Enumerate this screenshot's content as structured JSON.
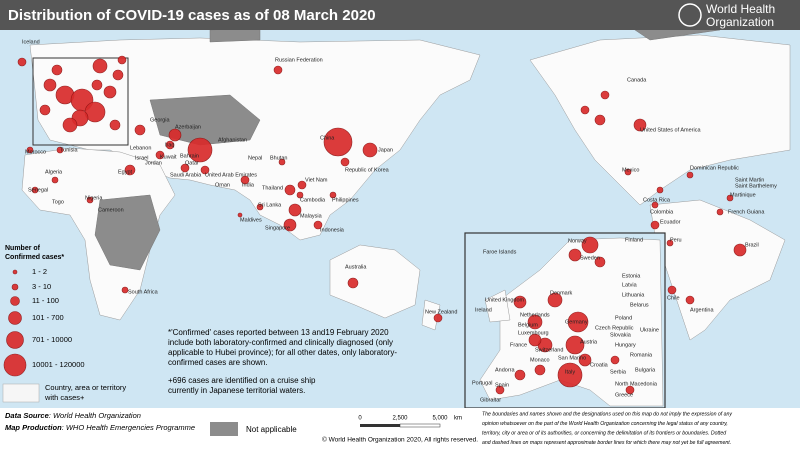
{
  "header": {
    "title": "Distribution of COVID-19 cases as of 08 March 2020",
    "org_line1": "World Health",
    "org_line2": "Organization"
  },
  "legend": {
    "title_line1": "Number of",
    "title_line2": "Confirmed cases*",
    "items": [
      "1 - 2",
      "3 - 10",
      "11 - 100",
      "101 - 700",
      "701 - 10000",
      "10001 - 120000"
    ],
    "territory_line1": "Country, area or territory",
    "territory_line2": "with cases+",
    "not_applicable": "Not applicable"
  },
  "notes": {
    "confirmed": [
      "*'Confirmed' cases reported between 13 and19 February 2020",
      "include both laboratory-confirmed and clinically diagnosed (only",
      "applicable to Hubei province); for all other dates, only laboratory-",
      "confirmed cases are shown."
    ],
    "cruise": [
      "+696 cases are identified on a cruise ship",
      "currently in Japanese territorial waters."
    ]
  },
  "footer": {
    "source_label": "Data Source",
    "source_value": ": World Health Organization",
    "production_label": "Map Production",
    "production_value": ": WHO Health Emergencies Programme",
    "scale": [
      "0",
      "2,500",
      "5,000",
      "km"
    ],
    "copyright": "© World Health Organization 2020, All rights reserved.",
    "disclaimer": [
      "The boundaries and names shown and the designations used on this map do not imply the expression of any",
      "opinion whatsoever on the part of the World Health Organization concerning the legal status of any country,",
      "territory, city or area or of its authorities, or concerning the delimitation of its frontiers or boundaries. Dotted",
      "and dashed lines on maps represent approximate border lines for which there may not yet be full agreement."
    ]
  },
  "map": {
    "labels": [
      "Russian Federation",
      "Canada",
      "United States of America",
      "Mexico",
      "China",
      "Japan",
      "Republic of Korea",
      "India",
      "Australia",
      "New Zealand",
      "Brazil",
      "Argentina",
      "Chile",
      "Peru",
      "Ecuador",
      "Colombia",
      "French Guiana",
      "South Africa",
      "Algeria",
      "Egypt",
      "Nigeria",
      "Senegal",
      "Togo",
      "Cameroon",
      "Morocco",
      "Tunisia",
      "Nepal",
      "Bhutan",
      "Sri Lanka",
      "Maldives",
      "Thailand",
      "Viet Nam",
      "Cambodia",
      "Malaysia",
      "Singapore",
      "Indonesia",
      "Philippines",
      "Afghanistan",
      "Dominican Republic",
      "Saint Martin",
      "Saint Barthelemy",
      "Martinique",
      "Costa Rica",
      "Georgia",
      "Azerbaijan",
      "Kuwait",
      "Qatar",
      "Bahrain",
      "United Arab Emirates",
      "Oman",
      "Saudi Arabia",
      "Iraq",
      "Jordan",
      "Israel",
      "Lebanon",
      "Iceland"
    ],
    "inset_labels": [
      "Faroe Islands",
      "Norway",
      "Sweden",
      "Finland",
      "Estonia",
      "Latvia",
      "Lithuania",
      "Belarus",
      "Denmark",
      "Ireland",
      "United Kingdom",
      "Netherlands",
      "Belgium",
      "Luxembourg",
      "Germany",
      "Poland",
      "Czech Republic",
      "Slovakia",
      "Ukraine",
      "France",
      "Switzerland",
      "Austria",
      "Hungary",
      "Romania",
      "Monaco",
      "San Marino",
      "Italy",
      "Croatia",
      "Serbia",
      "Bulgaria",
      "North Macedonia",
      "Andorra",
      "Spain",
      "Portugal",
      "Greece",
      "Gibraltar"
    ]
  }
}
